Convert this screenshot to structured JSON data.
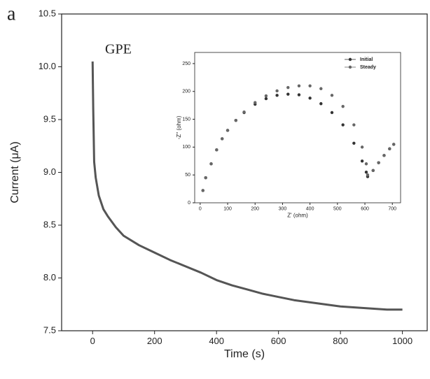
{
  "chart_data": [
    {
      "type": "line",
      "panel_label": "a",
      "annotation": "GPE",
      "xlabel": "Time (s)",
      "ylabel": "Current (μA)",
      "x": [
        0,
        2,
        5,
        10,
        20,
        35,
        50,
        75,
        100,
        150,
        200,
        250,
        300,
        350,
        400,
        450,
        500,
        550,
        600,
        650,
        700,
        750,
        800,
        850,
        900,
        950,
        1000
      ],
      "values": [
        10.05,
        9.6,
        9.1,
        8.95,
        8.78,
        8.65,
        8.58,
        8.48,
        8.4,
        8.31,
        8.24,
        8.17,
        8.11,
        8.05,
        7.98,
        7.93,
        7.89,
        7.85,
        7.82,
        7.79,
        7.77,
        7.75,
        7.73,
        7.72,
        7.71,
        7.7,
        7.7
      ],
      "color": "#555555",
      "xlim": [
        -100,
        1080
      ],
      "ylim": [
        7.5,
        10.5
      ],
      "xticks": [
        0,
        200,
        400,
        600,
        800,
        1000
      ],
      "yticks": [
        7.5,
        {
          "value": 8,
          "label": "8.0"
        },
        8.5,
        {
          "value": 9,
          "label": "9.0"
        },
        9.5,
        {
          "value": 10,
          "label": "10.0"
        },
        10.5
      ]
    },
    {
      "type": "scatter",
      "xlabel": "Z' (ohm)",
      "ylabel": "-Z'' (ohm)",
      "legend": "upper right",
      "x": [
        10,
        20,
        40,
        60,
        80,
        100,
        130,
        160,
        200,
        240,
        280,
        320,
        360,
        400,
        440,
        480,
        520,
        560,
        590,
        605,
        610,
        630,
        650,
        670,
        690,
        705
      ],
      "series": [
        {
          "name": "Initial",
          "color": "#333333",
          "values": [
            22,
            45,
            70,
            95,
            115,
            130,
            148,
            162,
            177,
            187,
            193,
            195,
            194,
            188,
            178,
            162,
            140,
            107,
            75,
            55,
            47,
            58,
            72,
            85,
            97,
            105
          ]
        },
        {
          "name": "Steady",
          "color": "#666666",
          "values": [
            22,
            45,
            70,
            95,
            115,
            130,
            148,
            163,
            180,
            192,
            201,
            207,
            210,
            210,
            205,
            193,
            173,
            140,
            100,
            70,
            50,
            58,
            72,
            85,
            97,
            105
          ]
        }
      ],
      "xlim": [
        -20,
        730
      ],
      "ylim": [
        0,
        270
      ],
      "xticks": [
        0,
        100,
        200,
        300,
        400,
        500,
        600,
        700
      ],
      "yticks": [
        0,
        50,
        100,
        150,
        200,
        250
      ]
    }
  ]
}
